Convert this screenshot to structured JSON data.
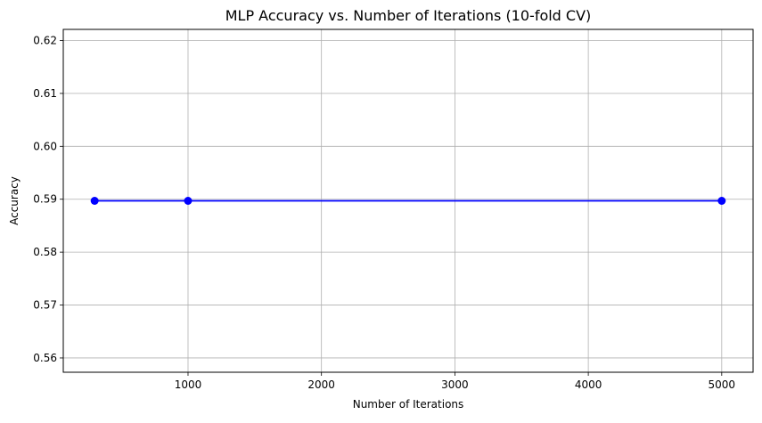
{
  "chart_data": {
    "type": "line",
    "title": "MLP Accuracy vs. Number of Iterations (10-fold CV)",
    "xlabel": "Number of Iterations",
    "ylabel": "Accuracy",
    "x": [
      300,
      1000,
      5000
    ],
    "series": [
      {
        "values": [
          0.5897,
          0.5897,
          0.5897
        ],
        "color": "#0000ff",
        "marker": "circle"
      }
    ],
    "xlim": [
      65,
      5235
    ],
    "ylim": [
      0.5573,
      0.6221
    ],
    "xticks": [
      1000,
      2000,
      3000,
      4000,
      5000
    ],
    "yticks": [
      0.56,
      0.57,
      0.58,
      0.59,
      0.6,
      0.61,
      0.62
    ],
    "grid": true,
    "grid_color": "#b0b0b0",
    "axis_color": "#000000"
  }
}
